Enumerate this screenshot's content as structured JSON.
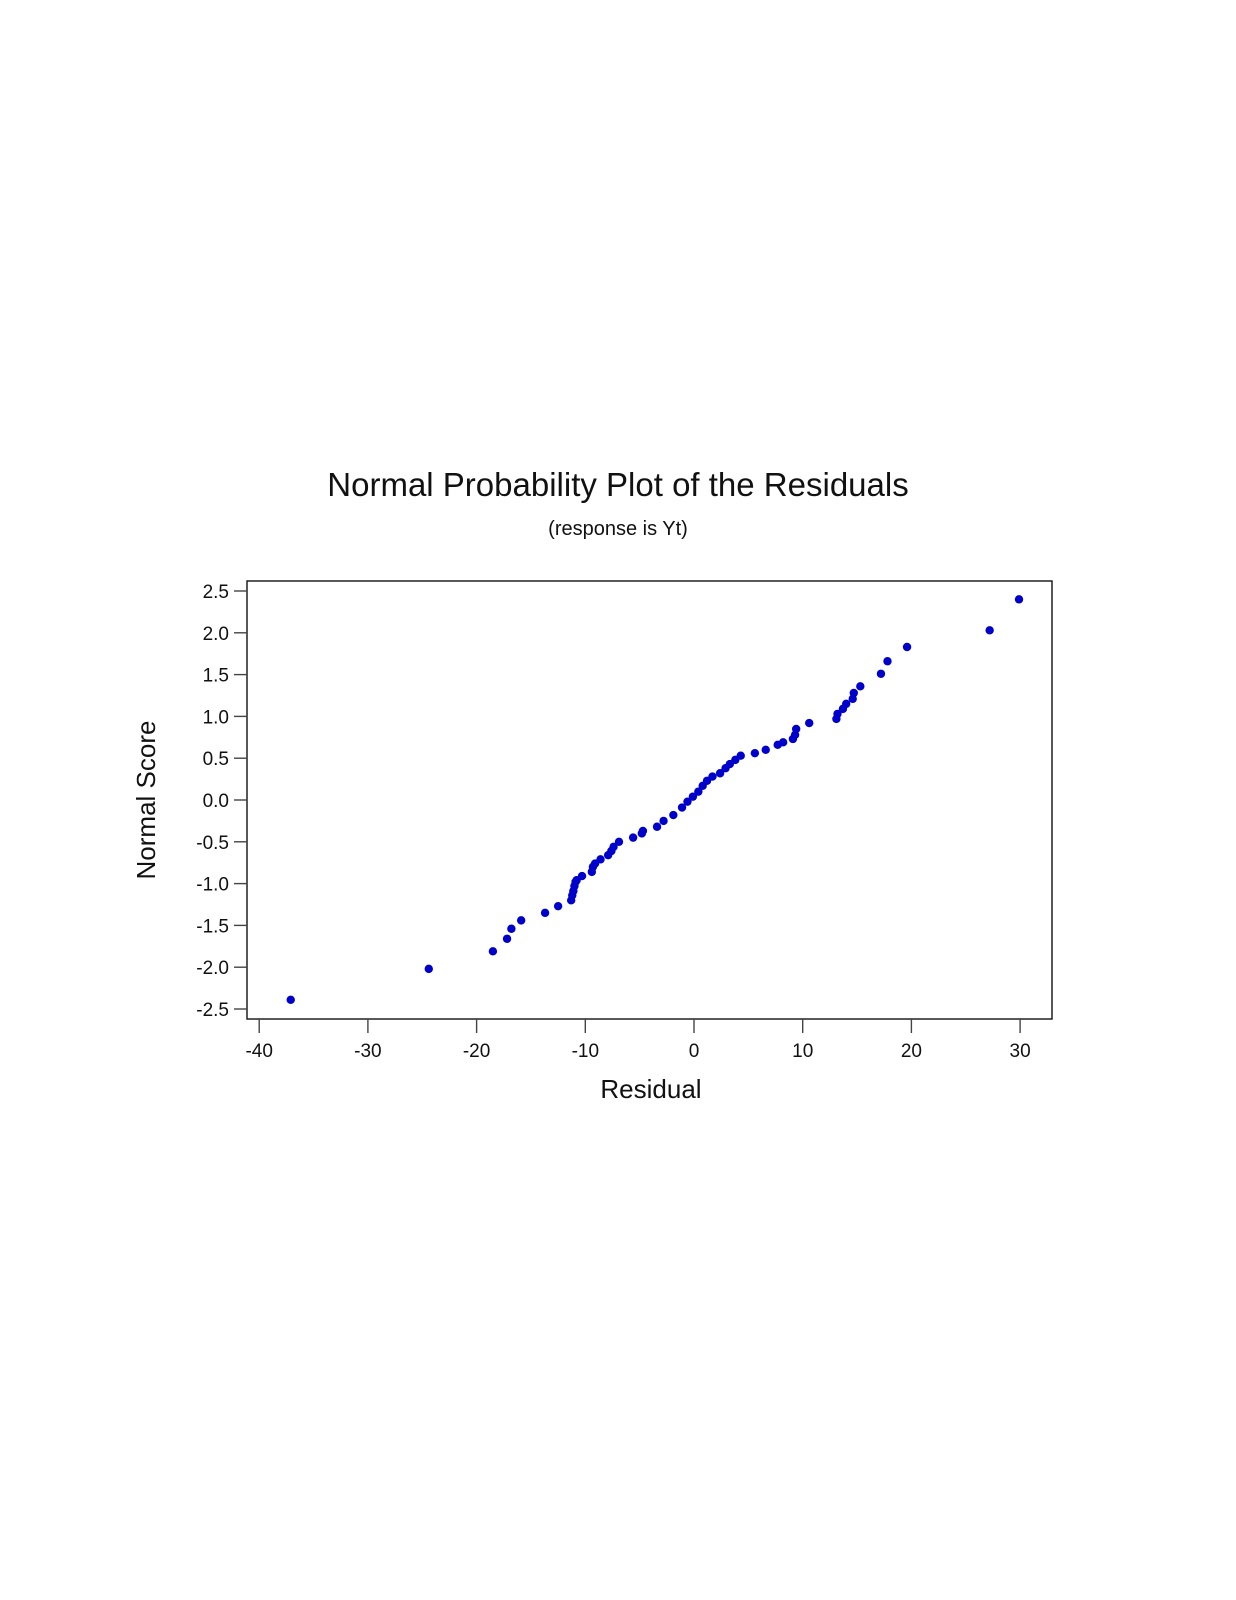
{
  "chart_data": {
    "type": "scatter",
    "title": "Normal Probability Plot of the Residuals",
    "subtitle": "(response is Yt)",
    "xlabel": "Residual",
    "ylabel": "Normal Score",
    "xlim": [
      -41,
      33
    ],
    "ylim": [
      -2.62,
      2.62
    ],
    "x_ticks": [
      -40,
      -30,
      -20,
      -10,
      0,
      10,
      20,
      30
    ],
    "x_tick_labels": [
      "-40",
      "-30",
      "-20",
      "-10",
      "0",
      "10",
      "20",
      "30"
    ],
    "y_ticks": [
      2.5,
      2.0,
      1.5,
      1.0,
      0.5,
      0.0,
      -0.5,
      -1.0,
      -1.5,
      -2.0,
      -2.5
    ],
    "y_tick_labels": [
      "2.5",
      "2.0",
      "1.5",
      "1.0",
      "0.5",
      "0.0",
      "-0.5",
      "-1.0",
      "-1.5",
      "-2.0",
      "-2.5"
    ],
    "grid": false,
    "legend": null,
    "marker_color": "#0000CC",
    "series": [
      {
        "name": "Residuals",
        "points": [
          [
            -37.1,
            -2.39
          ],
          [
            -24.4,
            -2.02
          ],
          [
            -18.5,
            -1.81
          ],
          [
            -17.2,
            -1.66
          ],
          [
            -16.8,
            -1.54
          ],
          [
            -15.9,
            -1.44
          ],
          [
            -13.7,
            -1.35
          ],
          [
            -12.5,
            -1.27
          ],
          [
            -11.3,
            -1.2
          ],
          [
            -11.2,
            -1.14
          ],
          [
            -11.1,
            -1.09
          ],
          [
            -11.0,
            -1.03
          ],
          [
            -10.9,
            -0.98
          ],
          [
            -10.8,
            -0.96
          ],
          [
            -10.3,
            -0.91
          ],
          [
            -9.4,
            -0.86
          ],
          [
            -9.3,
            -0.8
          ],
          [
            -9.1,
            -0.76
          ],
          [
            -8.6,
            -0.71
          ],
          [
            -7.9,
            -0.66
          ],
          [
            -7.6,
            -0.61
          ],
          [
            -7.4,
            -0.56
          ],
          [
            -6.9,
            -0.5
          ],
          [
            -5.6,
            -0.45
          ],
          [
            -4.8,
            -0.4
          ],
          [
            -4.7,
            -0.37
          ],
          [
            -3.4,
            -0.32
          ],
          [
            -2.8,
            -0.25
          ],
          [
            -1.9,
            -0.18
          ],
          [
            -1.1,
            -0.09
          ],
          [
            -0.6,
            -0.02
          ],
          [
            -0.1,
            0.04
          ],
          [
            0.4,
            0.1
          ],
          [
            0.8,
            0.17
          ],
          [
            1.2,
            0.23
          ],
          [
            1.7,
            0.28
          ],
          [
            2.4,
            0.32
          ],
          [
            2.9,
            0.38
          ],
          [
            3.3,
            0.43
          ],
          [
            3.8,
            0.48
          ],
          [
            4.3,
            0.53
          ],
          [
            5.6,
            0.56
          ],
          [
            6.6,
            0.6
          ],
          [
            7.7,
            0.66
          ],
          [
            8.2,
            0.69
          ],
          [
            9.1,
            0.73
          ],
          [
            9.3,
            0.78
          ],
          [
            9.4,
            0.85
          ],
          [
            10.6,
            0.92
          ],
          [
            13.1,
            0.97
          ],
          [
            13.2,
            1.03
          ],
          [
            13.7,
            1.09
          ],
          [
            14.0,
            1.15
          ],
          [
            14.6,
            1.21
          ],
          [
            14.7,
            1.28
          ],
          [
            15.3,
            1.36
          ],
          [
            17.2,
            1.51
          ],
          [
            17.8,
            1.66
          ],
          [
            19.6,
            1.83
          ],
          [
            27.2,
            2.03
          ],
          [
            29.9,
            2.4
          ]
        ]
      }
    ]
  }
}
